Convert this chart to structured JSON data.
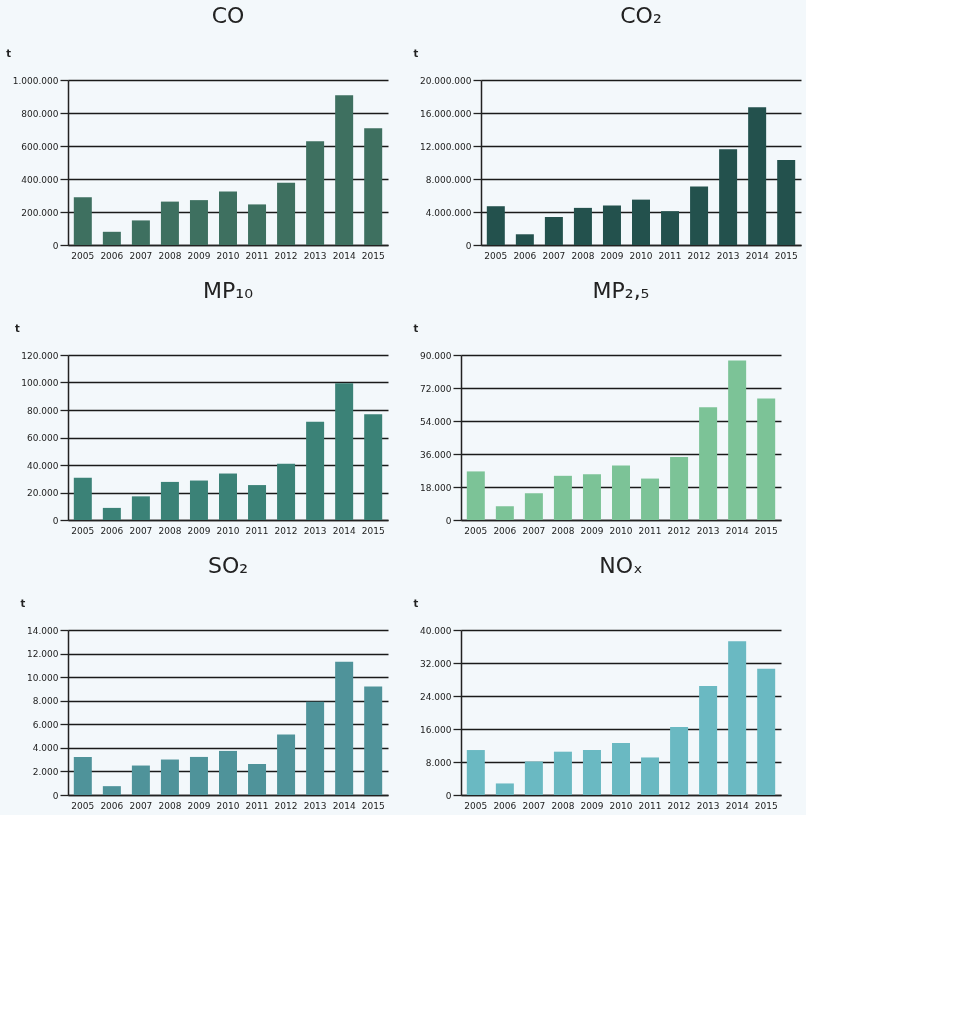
{
  "chart_data": [
    {
      "type": "bar",
      "title": "CO",
      "ylabel": "t",
      "categories": [
        "2005",
        "2006",
        "2007",
        "2008",
        "2009",
        "2010",
        "2011",
        "2012",
        "2013",
        "2014",
        "2015"
      ],
      "color": "#3e7060",
      "values": [
        289000,
        80000,
        149000,
        263000,
        272000,
        325000,
        246000,
        378000,
        629000,
        908000,
        708000
      ],
      "ylim": [
        0,
        1000000
      ],
      "yticks": [
        0,
        {
          "value": 200000,
          "label": "200.000"
        },
        {
          "value": 400000,
          "label": "400.000"
        },
        {
          "value": 600000,
          "label": "600.000"
        },
        {
          "value": 800000,
          "label": "800.000"
        },
        {
          "value": 1000000,
          "label": "1.000.000"
        }
      ],
      "grid": "y"
    },
    {
      "type": "bar",
      "title": "CO₂",
      "ylabel": "t",
      "categories": [
        "2005",
        "2006",
        "2007",
        "2008",
        "2009",
        "2010",
        "2011",
        "2012",
        "2013",
        "2014",
        "2015"
      ],
      "color": "#23514d",
      "values": [
        4700000,
        1300000,
        3400000,
        4500000,
        4800000,
        5500000,
        4100000,
        7100000,
        11600000,
        16700000,
        10300000
      ],
      "ylim": [
        0,
        20000000
      ],
      "yticks": [
        0,
        {
          "value": 4000000,
          "label": "4.000.000"
        },
        {
          "value": 8000000,
          "label": "8.000.000"
        },
        {
          "value": 12000000,
          "label": "12.000.000"
        },
        {
          "value": 16000000,
          "label": "16.000.000"
        },
        {
          "value": 20000000,
          "label": "20.000.000"
        }
      ],
      "grid": "y"
    },
    {
      "type": "bar",
      "title": "MP₁₀",
      "ylabel": "t",
      "categories": [
        "2005",
        "2006",
        "2007",
        "2008",
        "2009",
        "2010",
        "2011",
        "2012",
        "2013",
        "2014",
        "2015"
      ],
      "color": "#3b8277",
      "values": [
        30800,
        8800,
        17200,
        27700,
        28700,
        33800,
        25400,
        41000,
        71400,
        99500,
        76900
      ],
      "ylim": [
        0,
        120000
      ],
      "yticks": [
        0,
        {
          "value": 20000,
          "label": "20.000"
        },
        {
          "value": 40000,
          "label": "40.000"
        },
        {
          "value": 60000,
          "label": "60.000"
        },
        {
          "value": 80000,
          "label": "80.000"
        },
        {
          "value": 100000,
          "label": "100.000"
        },
        {
          "value": 120000,
          "label": "120.000"
        }
      ],
      "grid": "y"
    },
    {
      "type": "bar",
      "title": "MP₂,₅",
      "ylabel": "t",
      "categories": [
        "2005",
        "2006",
        "2007",
        "2008",
        "2009",
        "2010",
        "2011",
        "2012",
        "2013",
        "2014",
        "2015"
      ],
      "color": "#7cc397",
      "values": [
        26500,
        7500,
        14600,
        24100,
        24900,
        29700,
        22600,
        34400,
        61500,
        87000,
        66300
      ],
      "ylim": [
        0,
        90000
      ],
      "yticks": [
        0,
        {
          "value": 18000,
          "label": "18.000"
        },
        {
          "value": 36000,
          "label": "36.000"
        },
        {
          "value": 54000,
          "label": "54.000"
        },
        {
          "value": 72000,
          "label": "72.000"
        },
        {
          "value": 90000,
          "label": "90.000"
        }
      ],
      "grid": "y"
    },
    {
      "type": "bar",
      "title": "SO₂",
      "ylabel": "t",
      "categories": [
        "2005",
        "2006",
        "2007",
        "2008",
        "2009",
        "2010",
        "2011",
        "2012",
        "2013",
        "2014",
        "2015"
      ],
      "color": "#4f939a",
      "values": [
        3230,
        750,
        2500,
        3010,
        3230,
        3740,
        2630,
        5130,
        7920,
        11300,
        9210
      ],
      "ylim": [
        0,
        14000
      ],
      "yticks": [
        0,
        {
          "value": 2000,
          "label": "2.000"
        },
        {
          "value": 4000,
          "label": "4.000"
        },
        {
          "value": 6000,
          "label": "6.000"
        },
        {
          "value": 8000,
          "label": "8.000"
        },
        {
          "value": 10000,
          "label": "10.000"
        },
        {
          "value": 12000,
          "label": "12.000"
        },
        {
          "value": 14000,
          "label": "14.000"
        }
      ],
      "grid": "y"
    },
    {
      "type": "bar",
      "title": "NOₓ",
      "ylabel": "t",
      "categories": [
        "2005",
        "2006",
        "2007",
        "2008",
        "2009",
        "2010",
        "2011",
        "2012",
        "2013",
        "2014",
        "2015"
      ],
      "color": "#6ab9c2",
      "values": [
        10900,
        2800,
        8100,
        10500,
        10900,
        12600,
        9100,
        16500,
        26400,
        37300,
        30600
      ],
      "ylim": [
        0,
        40000
      ],
      "yticks": [
        0,
        {
          "value": 8000,
          "label": "8.000"
        },
        {
          "value": 16000,
          "label": "16.000"
        },
        {
          "value": 24000,
          "label": "24.000"
        },
        {
          "value": 32000,
          "label": "32.000"
        },
        {
          "value": 40000,
          "label": "40.000"
        }
      ],
      "grid": "y"
    }
  ]
}
